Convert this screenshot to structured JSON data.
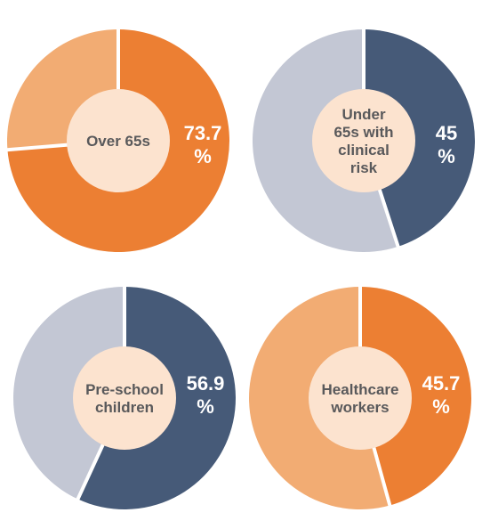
{
  "colors": {
    "orange": "#ec7f33",
    "light_orange": "#f2ac73",
    "navy": "#465a78",
    "grey": "#c3c7d4",
    "center": "#fce3cf",
    "separator": "#ffffff"
  },
  "chart_data": [
    {
      "type": "pie",
      "variant": "donut",
      "center_label": [
        "Over 65s"
      ],
      "pct_label": [
        "73.7",
        "%"
      ],
      "slices": [
        {
          "value": 73.7,
          "color": "#ec7f33"
        },
        {
          "value": 26.3,
          "color": "#f2ac73"
        }
      ]
    },
    {
      "type": "pie",
      "variant": "donut",
      "center_label": [
        "Under",
        "65s with",
        "clinical",
        "risk"
      ],
      "pct_label": [
        "45",
        "%"
      ],
      "slices": [
        {
          "value": 45,
          "color": "#465a78"
        },
        {
          "value": 55,
          "color": "#c3c7d4"
        }
      ]
    },
    {
      "type": "pie",
      "variant": "donut",
      "center_label": [
        "Pre-school",
        "children"
      ],
      "pct_label": [
        "56.9",
        "%"
      ],
      "slices": [
        {
          "value": 56.9,
          "color": "#465a78"
        },
        {
          "value": 43.1,
          "color": "#c3c7d4"
        }
      ]
    },
    {
      "type": "pie",
      "variant": "donut",
      "center_label": [
        "Healthcare",
        "workers"
      ],
      "pct_label": [
        "45.7",
        "%"
      ],
      "slices": [
        {
          "value": 45.7,
          "color": "#ec7f33"
        },
        {
          "value": 54.3,
          "color": "#f2ac73"
        }
      ]
    }
  ]
}
